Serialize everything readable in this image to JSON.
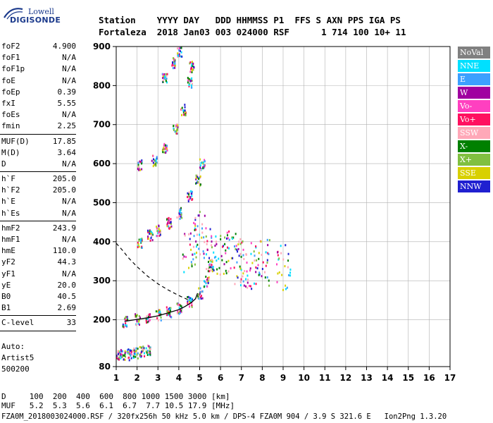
{
  "logo": {
    "top": "Lowell",
    "bottom": "DIGISONDE"
  },
  "header": {
    "line1": "Station    YYYY DAY   DDD HHMMSS P1  FFS S AXN PPS IGA PS",
    "line2": "Fortaleza  2018 Jan03 003 024000 RSF      1 714 100 10+ 11"
  },
  "params": {
    "group1": [
      {
        "label": "foF2",
        "value": "4.900"
      },
      {
        "label": "foF1",
        "value": "N/A"
      },
      {
        "label": "foF1p",
        "value": "N/A"
      },
      {
        "label": "foE",
        "value": "N/A"
      },
      {
        "label": "foEp",
        "value": "0.39"
      },
      {
        "label": "fxI",
        "value": "5.55"
      },
      {
        "label": "foEs",
        "value": "N/A"
      },
      {
        "label": "fmin",
        "value": "2.25"
      }
    ],
    "group2": [
      {
        "label": "MUF(D)",
        "value": "17.85"
      },
      {
        "label": "M(D)",
        "value": "3.64"
      },
      {
        "label": "D",
        "value": "N/A"
      }
    ],
    "group3": [
      {
        "label": "h`F",
        "value": "205.0"
      },
      {
        "label": "h`F2",
        "value": "205.0"
      },
      {
        "label": "h`E",
        "value": "N/A"
      },
      {
        "label": "h`Es",
        "value": "N/A"
      }
    ],
    "group4": [
      {
        "label": "hmF2",
        "value": "243.9"
      },
      {
        "label": "hmF1",
        "value": "N/A"
      },
      {
        "label": "hmE",
        "value": "110.0"
      },
      {
        "label": "yF2",
        "value": "44.3"
      },
      {
        "label": "yF1",
        "value": "N/A"
      },
      {
        "label": "yE",
        "value": "20.0"
      },
      {
        "label": "B0",
        "value": "40.5"
      },
      {
        "label": "B1",
        "value": "2.69"
      }
    ],
    "group5": [
      {
        "label": "C-level",
        "value": "33"
      }
    ]
  },
  "auto": {
    "line1": "Auto:",
    "line2": "Artist5",
    "line3": "500200"
  },
  "legend": [
    {
      "label": "NoVal",
      "color": "#808080"
    },
    {
      "label": "NNE",
      "color": "#00e0ff"
    },
    {
      "label": "E",
      "color": "#3ca0ff"
    },
    {
      "label": "W",
      "color": "#a000a0"
    },
    {
      "label": "Vo-",
      "color": "#ff40c0"
    },
    {
      "label": "Vo+",
      "color": "#ff1060"
    },
    {
      "label": "SSW",
      "color": "#ffa8b8"
    },
    {
      "label": "X-",
      "color": "#008000"
    },
    {
      "label": "X+",
      "color": "#80c040"
    },
    {
      "label": "SSE",
      "color": "#d8d000"
    },
    {
      "label": "NNW",
      "color": "#2020d0"
    }
  ],
  "footer": {
    "line1": "D     100  200  400  600  800 1000 1500 3000 [km]",
    "line2": "MUF   5.2  5.3  5.6  6.1  6.7  7.7 10.5 17.9 [MHz]",
    "line3": "FZA0M_2018003024000.RSF / 320fx256h 50 kHz 5.0 km / DPS-4 FZA0M 904 / 3.9 S 321.6 E   Ion2Png 1.3.20"
  },
  "chart_data": {
    "type": "scatter",
    "title": "",
    "xlabel": "",
    "ylabel": "",
    "xlim": [
      1,
      17
    ],
    "ylim": [
      80,
      900
    ],
    "x_ticks": [
      1,
      2,
      3,
      4,
      5,
      6,
      7,
      8,
      9,
      10,
      11,
      12,
      13,
      14,
      15,
      16,
      17
    ],
    "y_ticks": [
      80,
      200,
      300,
      400,
      500,
      600,
      700,
      800,
      900
    ],
    "grid": true,
    "legend_position": "right",
    "trace_profile": {
      "solid": [
        [
          1.4,
          196
        ],
        [
          2.0,
          201
        ],
        [
          2.5,
          205
        ],
        [
          3.0,
          210
        ],
        [
          3.5,
          218
        ],
        [
          4.0,
          226
        ],
        [
          4.3,
          234
        ],
        [
          4.6,
          244
        ],
        [
          4.8,
          254
        ],
        [
          4.9,
          268
        ]
      ],
      "dashed": [
        [
          1.0,
          396
        ],
        [
          1.3,
          378
        ],
        [
          1.6,
          358
        ],
        [
          2.0,
          336
        ],
        [
          2.5,
          312
        ],
        [
          3.0,
          292
        ],
        [
          3.5,
          276
        ],
        [
          4.0,
          262
        ],
        [
          4.5,
          250
        ]
      ]
    },
    "echo_regions": [
      {
        "name": "E-layer",
        "points": [
          [
            1.1,
            110
          ],
          [
            1.3,
            111
          ],
          [
            1.6,
            113
          ],
          [
            1.9,
            117
          ],
          [
            2.2,
            121
          ],
          [
            2.5,
            126
          ]
        ]
      },
      {
        "name": "F-trace",
        "points": [
          [
            1.4,
            197
          ],
          [
            2.0,
            203
          ],
          [
            2.5,
            208
          ],
          [
            3.0,
            214
          ],
          [
            3.5,
            221
          ],
          [
            4.0,
            232
          ],
          [
            4.5,
            248
          ],
          [
            5.0,
            270
          ],
          [
            5.3,
            300
          ],
          [
            5.5,
            340
          ]
        ]
      },
      {
        "name": "F-2hop",
        "points": [
          [
            2.1,
            400
          ],
          [
            2.6,
            418
          ],
          [
            3.0,
            430
          ],
          [
            3.5,
            450
          ],
          [
            4.0,
            475
          ],
          [
            4.5,
            520
          ],
          [
            4.9,
            560
          ],
          [
            5.1,
            600
          ]
        ]
      },
      {
        "name": "F-3hop",
        "points": [
          [
            2.1,
            598
          ],
          [
            2.8,
            610
          ],
          [
            3.3,
            640
          ],
          [
            3.8,
            690
          ],
          [
            4.2,
            740
          ],
          [
            4.5,
            810
          ],
          [
            4.6,
            850
          ]
        ]
      },
      {
        "name": "F-4hop",
        "points": [
          [
            3.3,
            820
          ],
          [
            3.7,
            860
          ],
          [
            4.0,
            890
          ]
        ]
      },
      {
        "name": "spread-F",
        "points": [
          [
            4.5,
            380
          ],
          [
            5.0,
            420
          ],
          [
            5.5,
            380
          ],
          [
            6.0,
            360
          ],
          [
            6.5,
            370
          ],
          [
            7.0,
            350
          ],
          [
            7.5,
            340
          ],
          [
            8.0,
            350
          ],
          [
            9.0,
            336
          ]
        ]
      }
    ]
  }
}
